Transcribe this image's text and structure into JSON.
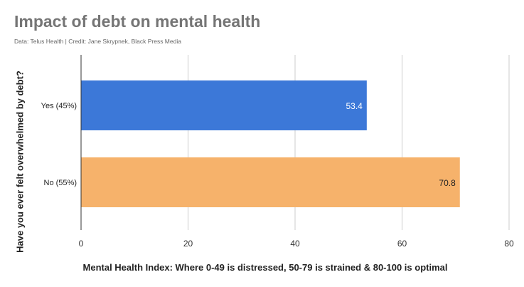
{
  "chart_data": {
    "type": "bar",
    "orientation": "horizontal",
    "title": "Impact of debt on mental health",
    "subtitle": "Data: Telus Health | Credit: Jane Skrypnek, Black Press Media",
    "xlabel": "Mental Health Index: Where 0-49 is distressed, 50-79 is strained & 80-100 is optimal",
    "ylabel": "Have you ever felt overwhelmed by debt?",
    "categories": [
      "Yes (45%)",
      "No (55%)"
    ],
    "values": [
      53.4,
      70.8
    ],
    "data_labels": [
      "53.4",
      "70.8"
    ],
    "colors": [
      "#3c78d8",
      "#f6b26b"
    ],
    "label_colors": [
      "#ffffff",
      "#222222"
    ],
    "xlim": [
      0,
      80
    ],
    "xticks": [
      0,
      20,
      40,
      60,
      80
    ],
    "grid": true,
    "legend": "none"
  }
}
